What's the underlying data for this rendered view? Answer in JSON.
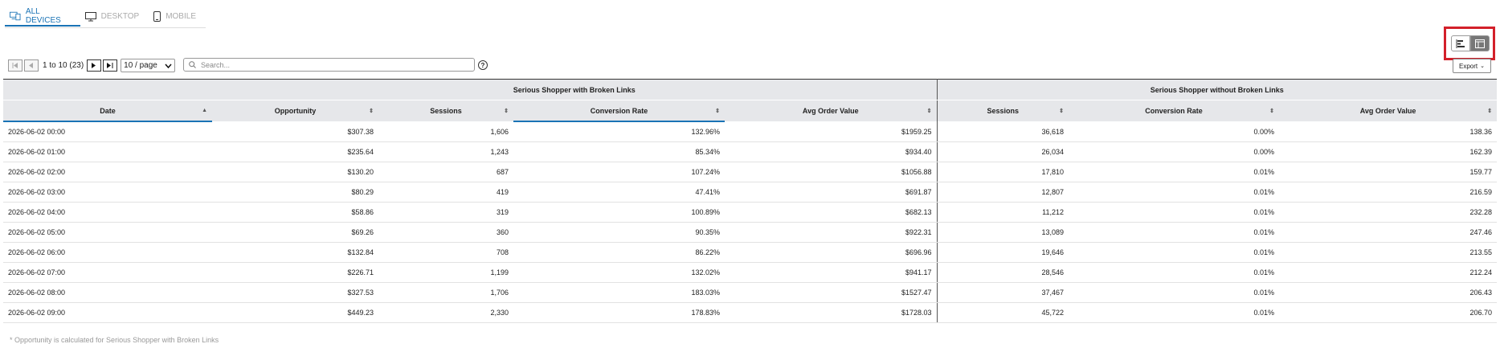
{
  "tabs": [
    {
      "label": "ALL DEVICES",
      "icon": "all-devices-icon",
      "active": true
    },
    {
      "label": "DESKTOP",
      "icon": "desktop-icon",
      "active": false
    },
    {
      "label": "MOBILE",
      "icon": "mobile-icon",
      "active": false
    }
  ],
  "export_label": "Export",
  "pager": {
    "range": "1 to 10 (23)",
    "per_page": "10 / page"
  },
  "search": {
    "placeholder": "Search..."
  },
  "help_label": "?",
  "groups": {
    "with": "Serious Shopper with Broken Links",
    "without": "Serious Shopper without Broken Links"
  },
  "columns": [
    "Date",
    "Opportunity",
    "Sessions",
    "Conversion Rate",
    "Avg Order Value",
    "Sessions",
    "Conversion Rate",
    "Avg Order Value"
  ],
  "rows": [
    [
      "2026-06-02 00:00",
      "$307.38",
      "1,606",
      "132.96%",
      "$1959.25",
      "36,618",
      "0.00%",
      "138.36"
    ],
    [
      "2026-06-02 01:00",
      "$235.64",
      "1,243",
      "85.34%",
      "$934.40",
      "26,034",
      "0.00%",
      "162.39"
    ],
    [
      "2026-06-02 02:00",
      "$130.20",
      "687",
      "107.24%",
      "$1056.88",
      "17,810",
      "0.01%",
      "159.77"
    ],
    [
      "2026-06-02 03:00",
      "$80.29",
      "419",
      "47.41%",
      "$691.87",
      "12,807",
      "0.01%",
      "216.59"
    ],
    [
      "2026-06-02 04:00",
      "$58.86",
      "319",
      "100.89%",
      "$682.13",
      "11,212",
      "0.01%",
      "232.28"
    ],
    [
      "2026-06-02 05:00",
      "$69.26",
      "360",
      "90.35%",
      "$922.31",
      "13,089",
      "0.01%",
      "247.46"
    ],
    [
      "2026-06-02 06:00",
      "$132.84",
      "708",
      "86.22%",
      "$696.96",
      "19,646",
      "0.01%",
      "213.55"
    ],
    [
      "2026-06-02 07:00",
      "$226.71",
      "1,199",
      "132.02%",
      "$941.17",
      "28,546",
      "0.01%",
      "212.24"
    ],
    [
      "2026-06-02 08:00",
      "$327.53",
      "1,706",
      "183.03%",
      "$1527.47",
      "37,467",
      "0.01%",
      "206.43"
    ],
    [
      "2026-06-02 09:00",
      "$449.23",
      "2,330",
      "178.83%",
      "$1728.03",
      "45,722",
      "0.01%",
      "206.70"
    ]
  ],
  "footnote": "* Opportunity is calculated for Serious Shopper with Broken Links"
}
